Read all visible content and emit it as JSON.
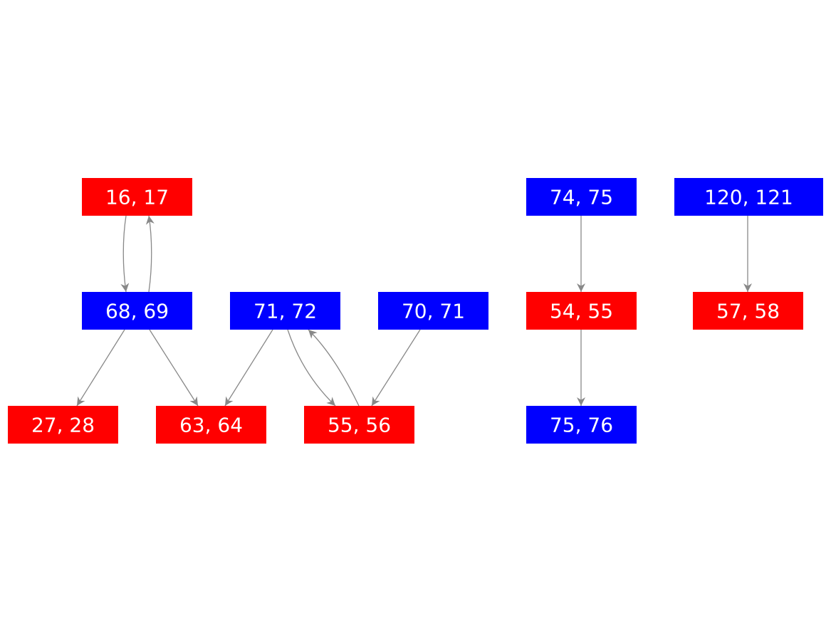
{
  "nodes": [
    {
      "label": "16, 17"
    },
    {
      "label": "68, 69"
    },
    {
      "label": "71, 72"
    },
    {
      "label": "70, 71"
    },
    {
      "label": "27, 28"
    },
    {
      "label": "63, 64"
    },
    {
      "label": "55, 56"
    },
    {
      "label": "74, 75"
    },
    {
      "label": "54, 55"
    },
    {
      "label": "75, 76"
    },
    {
      "label": "120, 121"
    },
    {
      "label": "57, 58"
    }
  ]
}
